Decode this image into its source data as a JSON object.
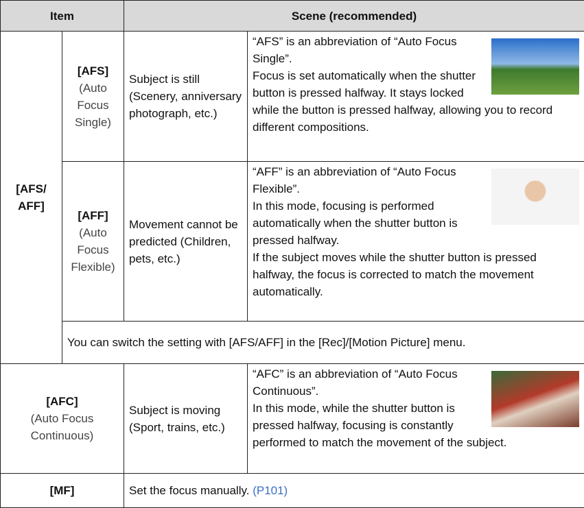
{
  "header": {
    "item": "Item",
    "scene": "Scene (recommended)"
  },
  "afs_aff": {
    "label": "[AFS/ AFF]",
    "modes": [
      {
        "name": "[AFS]",
        "desc": "(Auto Focus Single)",
        "subject": "Subject is still (Scenery, anniversary photograph, etc.)",
        "details": [
          "“AFS” is an abbreviation of “Auto Focus Single”.",
          "Focus is set automatically when the shutter button is pressed halfway. It stays locked while the button is pressed halfway, allowing you to record different compositions."
        ]
      },
      {
        "name": "[AFF]",
        "desc": "(Auto Focus Flexible)",
        "subject": "Movement cannot be predicted (Children, pets, etc.)",
        "details": [
          "“AFF” is an abbreviation of “Auto Focus Flexible”.",
          "In this mode, focusing is performed automatically when the shutter button is pressed halfway.",
          "If the subject moves while the shutter button is pressed halfway, the focus is corrected to match the movement automatically."
        ]
      }
    ],
    "note": "You can switch the setting with [AFS/AFF] in the [Rec]/[Motion Picture] menu."
  },
  "afc": {
    "name": "[AFC]",
    "desc": "(Auto Focus Continuous)",
    "subject": "Subject is moving (Sport, trains, etc.)",
    "details": [
      "“AFC” is an abbreviation of “Auto Focus Continuous”.",
      "In this mode, while the shutter button is pressed halfway, focusing is constantly performed to match the movement of the subject."
    ]
  },
  "mf": {
    "name": "[MF]",
    "text": "Set the focus manually.",
    "link": "(P101)"
  }
}
